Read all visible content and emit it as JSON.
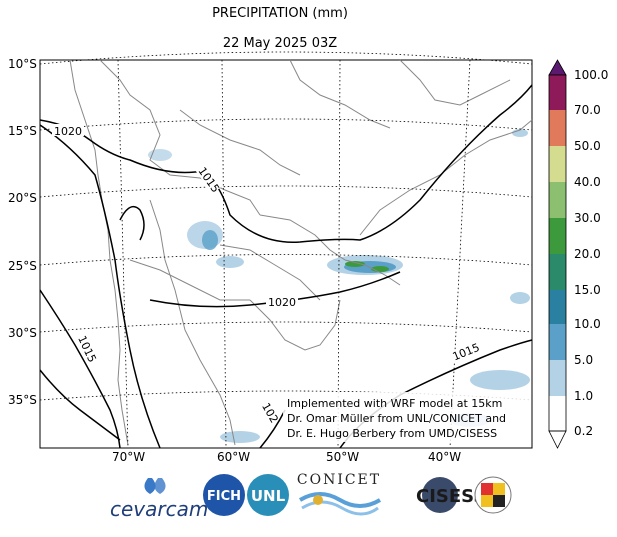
{
  "header": {
    "title": "PRECIPITATION (mm)",
    "date": "22 May 2025 03Z"
  },
  "axes": {
    "lat_labels": [
      "10°S",
      "15°S",
      "20°S",
      "25°S",
      "30°S",
      "35°S"
    ],
    "lon_labels": [
      "70°W",
      "60°W",
      "50°W",
      "40°W"
    ]
  },
  "colorbar": {
    "levels": [
      "100.0",
      "70.0",
      "50.0",
      "40.0",
      "30.0",
      "20.0",
      "15.0",
      "10.0",
      "5.0",
      "1.0",
      "0.2"
    ],
    "colors": [
      "#5b1a70",
      "#8f1a5a",
      "#b03a6a",
      "#e07a5a",
      "#d4dc90",
      "#8cc070",
      "#3c9a3c",
      "#2a8a6a",
      "#2a80a0",
      "#5aa0c8",
      "#b4d2e6",
      "#ffffff"
    ]
  },
  "isobars": {
    "labels": [
      "1020",
      "1015",
      "1020",
      "1015",
      "1015",
      "102"
    ]
  },
  "credits": {
    "line1": "Implemented with WRF model at 15km",
    "line2": "Dr. Omar Müller from UNL/CONICET and",
    "line3": "Dr. E. Hugo Berbery from UMD/CISESS"
  },
  "logos": {
    "cevarcam": "cevarcam",
    "fich": "FICH",
    "unl": "UNL",
    "conicet": "CONICET",
    "cisess": "CISESS"
  }
}
